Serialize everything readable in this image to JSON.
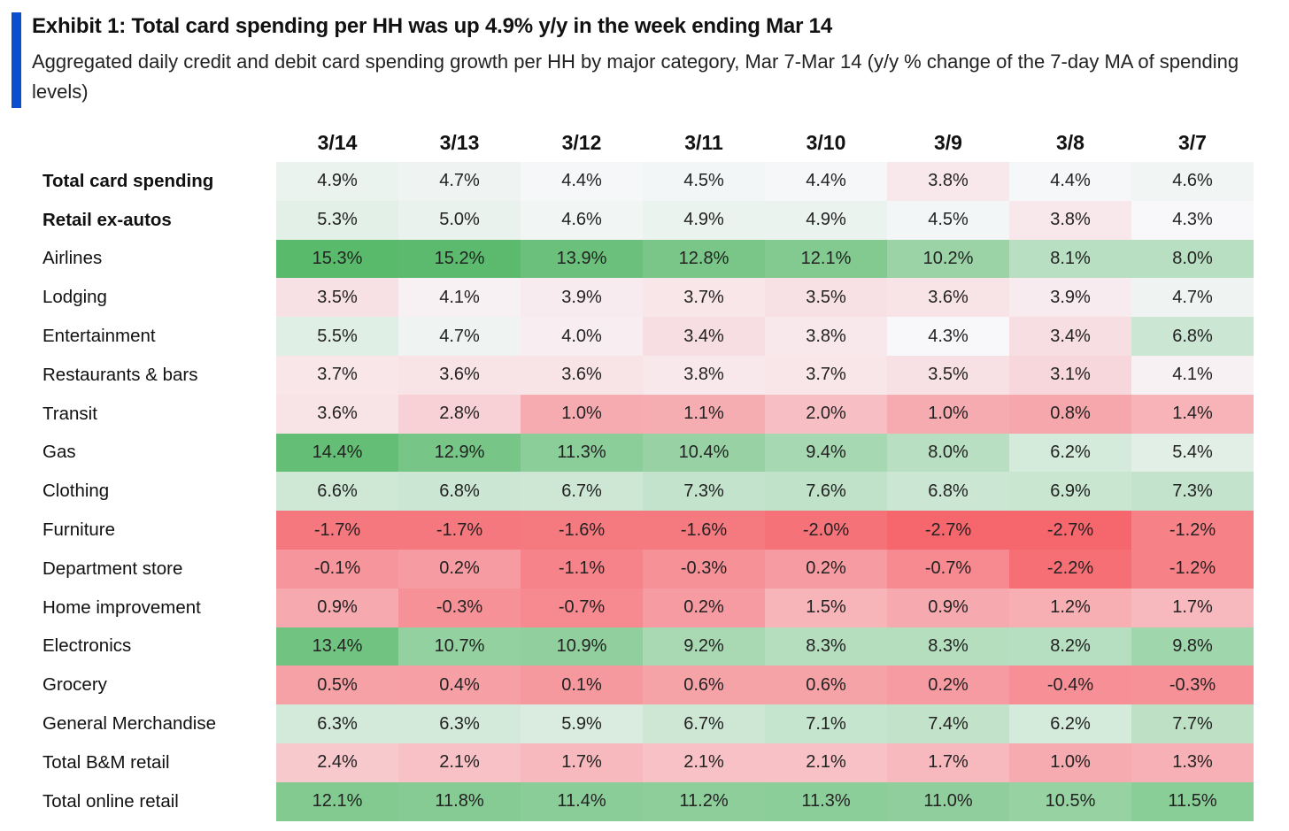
{
  "title": "Exhibit 1: Total card spending per HH was up 4.9% y/y in the week ending Mar 14",
  "subtitle": "Aggregated daily credit and debit card spending growth per HH by major category, Mar 7-Mar 14 (y/y % change of the 7-day MA of spending levels)",
  "colors": {
    "accent_bar": "#0b4fd0",
    "high_green": "#57b96a",
    "neutral": "#f8f8fb",
    "low_red": "#f5646b"
  },
  "chart_data": {
    "type": "heatmap",
    "title": "Exhibit 1: Total card spending per HH was up 4.9% y/y in the week ending Mar 14",
    "subtitle": "Aggregated daily credit and debit card spending growth per HH by major category, Mar 7-Mar 14 (y/y % change of the 7-day MA of spending levels)",
    "columns": [
      "3/14",
      "3/13",
      "3/12",
      "3/11",
      "3/10",
      "3/9",
      "3/8",
      "3/7"
    ],
    "rows": [
      {
        "label": "Total card spending",
        "bold": true,
        "values": [
          "4.9%",
          "4.7%",
          "4.4%",
          "4.5%",
          "4.4%",
          "3.8%",
          "4.4%",
          "4.6%"
        ]
      },
      {
        "label": "Retail ex-autos",
        "bold": true,
        "values": [
          "5.3%",
          "5.0%",
          "4.6%",
          "4.9%",
          "4.9%",
          "4.5%",
          "3.8%",
          "4.3%"
        ]
      },
      {
        "label": "Airlines",
        "bold": false,
        "values": [
          "15.3%",
          "15.2%",
          "13.9%",
          "12.8%",
          "12.1%",
          "10.2%",
          "8.1%",
          "8.0%"
        ]
      },
      {
        "label": "Lodging",
        "bold": false,
        "values": [
          "3.5%",
          "4.1%",
          "3.9%",
          "3.7%",
          "3.5%",
          "3.6%",
          "3.9%",
          "4.7%"
        ]
      },
      {
        "label": "Entertainment",
        "bold": false,
        "values": [
          "5.5%",
          "4.7%",
          "4.0%",
          "3.4%",
          "3.8%",
          "4.3%",
          "3.4%",
          "6.8%"
        ]
      },
      {
        "label": "Restaurants & bars",
        "bold": false,
        "values": [
          "3.7%",
          "3.6%",
          "3.6%",
          "3.8%",
          "3.7%",
          "3.5%",
          "3.1%",
          "4.1%"
        ]
      },
      {
        "label": "Transit",
        "bold": false,
        "values": [
          "3.6%",
          "2.8%",
          "1.0%",
          "1.1%",
          "2.0%",
          "1.0%",
          "0.8%",
          "1.4%"
        ]
      },
      {
        "label": "Gas",
        "bold": false,
        "values": [
          "14.4%",
          "12.9%",
          "11.3%",
          "10.4%",
          "9.4%",
          "8.0%",
          "6.2%",
          "5.4%"
        ]
      },
      {
        "label": "Clothing",
        "bold": false,
        "values": [
          "6.6%",
          "6.8%",
          "6.7%",
          "7.3%",
          "7.6%",
          "6.8%",
          "6.9%",
          "7.3%"
        ]
      },
      {
        "label": "Furniture",
        "bold": false,
        "values": [
          "-1.7%",
          "-1.7%",
          "-1.6%",
          "-1.6%",
          "-2.0%",
          "-2.7%",
          "-2.7%",
          "-1.2%"
        ]
      },
      {
        "label": "Department store",
        "bold": false,
        "values": [
          "-0.1%",
          "0.2%",
          "-1.1%",
          "-0.3%",
          "0.2%",
          "-0.7%",
          "-2.2%",
          "-1.2%"
        ]
      },
      {
        "label": "Home improvement",
        "bold": false,
        "values": [
          "0.9%",
          "-0.3%",
          "-0.7%",
          "0.2%",
          "1.5%",
          "0.9%",
          "1.2%",
          "1.7%"
        ]
      },
      {
        "label": "Electronics",
        "bold": false,
        "values": [
          "13.4%",
          "10.7%",
          "10.9%",
          "9.2%",
          "8.3%",
          "8.3%",
          "8.2%",
          "9.8%"
        ]
      },
      {
        "label": "Grocery",
        "bold": false,
        "values": [
          "0.5%",
          "0.4%",
          "0.1%",
          "0.6%",
          "0.6%",
          "0.2%",
          "-0.4%",
          "-0.3%"
        ]
      },
      {
        "label": "General Merchandise",
        "bold": false,
        "values": [
          "6.3%",
          "6.3%",
          "5.9%",
          "6.7%",
          "7.1%",
          "7.4%",
          "6.2%",
          "7.7%"
        ]
      },
      {
        "label": "Total B&M retail",
        "bold": false,
        "values": [
          "2.4%",
          "2.1%",
          "1.7%",
          "2.1%",
          "2.1%",
          "1.7%",
          "1.0%",
          "1.3%"
        ]
      },
      {
        "label": "Total online retail",
        "bold": false,
        "values": [
          "12.1%",
          "11.8%",
          "11.4%",
          "11.2%",
          "11.3%",
          "11.0%",
          "10.5%",
          "11.5%"
        ]
      }
    ]
  }
}
